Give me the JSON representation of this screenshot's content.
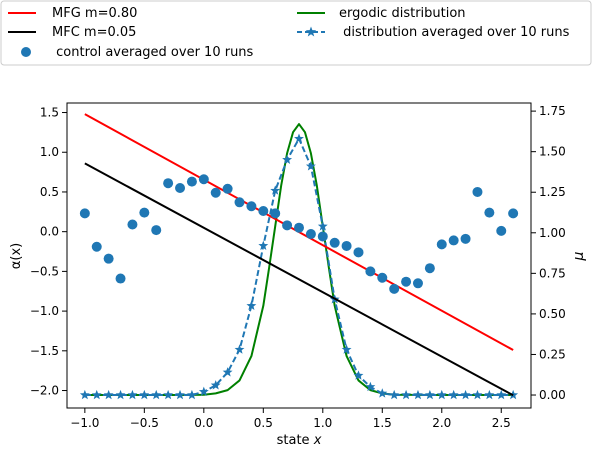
{
  "chart_data": {
    "type": "line",
    "xlabel": "state x",
    "ylabel_left": "α(x)",
    "ylabel_right": "μ",
    "xlim": [
      -1.15,
      2.75
    ],
    "ylim_left": [
      -2.22,
      1.62
    ],
    "ylim_right": [
      -0.08,
      1.8
    ],
    "x_ticks": [
      -1.0,
      -0.5,
      0.0,
      0.5,
      1.0,
      1.5,
      2.0,
      2.5
    ],
    "x_tick_labels": [
      "−1.0",
      "−0.5",
      "0.0",
      "0.5",
      "1.0",
      "1.5",
      "2.0",
      "2.5"
    ],
    "y_left_ticks": [
      1.5,
      1.0,
      0.5,
      0.0,
      -0.5,
      -1.0,
      -1.5,
      -2.0
    ],
    "y_left_tick_labels": [
      "1.5",
      "1.0",
      "0.5",
      "0.0",
      "−0.5",
      "−1.0",
      "−1.5",
      "−2.0"
    ],
    "y_right_ticks": [
      1.75,
      1.5,
      1.25,
      1.0,
      0.75,
      0.5,
      0.25,
      0.0
    ],
    "y_right_tick_labels": [
      "1.75",
      "1.50",
      "1.25",
      "1.00",
      "0.75",
      "0.50",
      "0.25",
      "0.00"
    ],
    "grid": false,
    "legend_placement": "top, outside plot, two columns",
    "series": [
      {
        "name": "MFG m=0.80",
        "axis": "left",
        "style": "line",
        "color": "#ff0000",
        "x": [
          -1.0,
          2.6
        ],
        "y": [
          1.48,
          -1.49
        ]
      },
      {
        "name": "MFC m=0.05",
        "axis": "left",
        "style": "line",
        "color": "#000000",
        "x": [
          -1.0,
          2.6
        ],
        "y": [
          0.86,
          -2.06
        ]
      },
      {
        "name": " control averaged over 10 runs",
        "axis": "left",
        "style": "scatter",
        "color": "#1f77b4",
        "x": [
          -1.0,
          -0.9,
          -0.8,
          -0.7,
          -0.6,
          -0.5,
          -0.4,
          -0.3,
          -0.2,
          -0.1,
          0.0,
          0.1,
          0.2,
          0.3,
          0.4,
          0.5,
          0.6,
          0.7,
          0.8,
          0.9,
          1.0,
          1.1,
          1.2,
          1.3,
          1.4,
          1.5,
          1.6,
          1.7,
          1.8,
          1.9,
          2.0,
          2.1,
          2.2,
          2.3,
          2.4,
          2.5,
          2.6
        ],
        "y": [
          0.23,
          -0.19,
          -0.34,
          -0.59,
          0.09,
          0.24,
          0.02,
          0.61,
          0.55,
          0.63,
          0.66,
          0.49,
          0.54,
          0.37,
          0.32,
          0.26,
          0.23,
          0.08,
          0.05,
          -0.03,
          -0.06,
          -0.14,
          -0.18,
          -0.26,
          -0.5,
          -0.58,
          -0.72,
          -0.63,
          -0.65,
          -0.46,
          -0.16,
          -0.11,
          -0.09,
          0.5,
          0.24,
          0.01,
          0.23
        ]
      },
      {
        "name": "ergodic distribution",
        "axis": "right",
        "style": "line",
        "color": "#008000",
        "x": [
          -1.0,
          -0.5,
          -0.2,
          0.0,
          0.1,
          0.2,
          0.3,
          0.4,
          0.5,
          0.55,
          0.6,
          0.65,
          0.7,
          0.75,
          0.8,
          0.85,
          0.9,
          0.95,
          1.0,
          1.05,
          1.1,
          1.2,
          1.3,
          1.4,
          1.5,
          1.6,
          2.0,
          2.6
        ],
        "y": [
          0.0,
          0.0,
          0.0,
          0.002,
          0.01,
          0.03,
          0.09,
          0.24,
          0.55,
          0.79,
          1.04,
          1.29,
          1.49,
          1.62,
          1.67,
          1.62,
          1.49,
          1.29,
          1.04,
          0.79,
          0.55,
          0.24,
          0.09,
          0.03,
          0.01,
          0.002,
          0.0,
          0.0
        ]
      },
      {
        "name": " distribution averaged over 10 runs",
        "axis": "right",
        "style": "dashed-star",
        "color": "#1f77b4",
        "x": [
          -1.0,
          -0.9,
          -0.8,
          -0.7,
          -0.6,
          -0.5,
          -0.4,
          -0.3,
          -0.2,
          -0.1,
          0.0,
          0.1,
          0.2,
          0.3,
          0.4,
          0.5,
          0.6,
          0.7,
          0.8,
          0.9,
          1.0,
          1.1,
          1.2,
          1.3,
          1.4,
          1.5,
          1.6,
          1.7,
          1.8,
          1.9,
          2.0,
          2.1,
          2.2,
          2.3,
          2.4,
          2.5,
          2.6
        ],
        "y": [
          0.0,
          0.0,
          0.0,
          0.0,
          0.0,
          0.0,
          0.0,
          0.0,
          0.0,
          0.0,
          0.02,
          0.06,
          0.14,
          0.28,
          0.55,
          0.92,
          1.26,
          1.45,
          1.58,
          1.41,
          1.04,
          0.59,
          0.28,
          0.12,
          0.05,
          0.01,
          0.0,
          0.0,
          0.0,
          0.0,
          0.0,
          0.0,
          0.0,
          0.0,
          0.0,
          0.0,
          0.0
        ]
      }
    ]
  }
}
